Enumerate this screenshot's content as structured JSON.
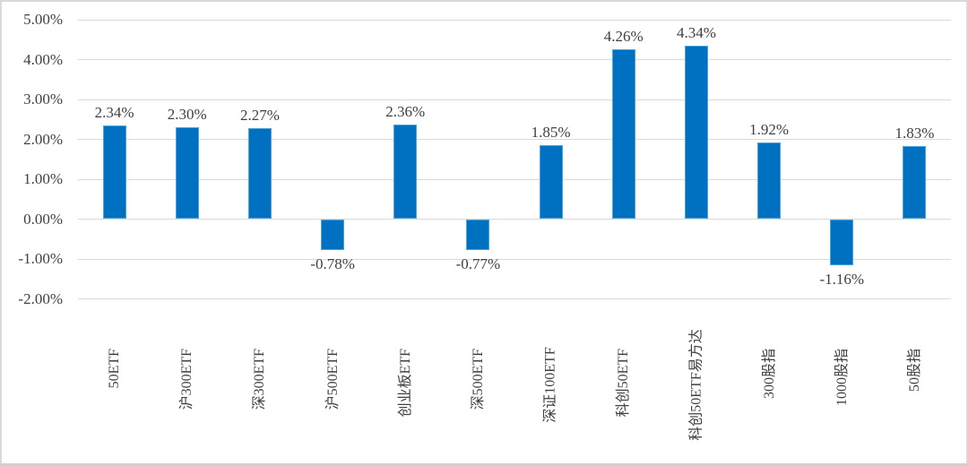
{
  "chart_data": {
    "type": "bar",
    "title": "",
    "xlabel": "",
    "ylabel": "",
    "categories": [
      "50ETF",
      "沪300ETF",
      "深300ETF",
      "沪500ETF",
      "创业板ETF",
      "深500ETF",
      "深证100ETF",
      "科创50ETF",
      "科创50ETF易方达",
      "300股指",
      "1000股指",
      "50股指"
    ],
    "values": [
      2.34,
      2.3,
      2.27,
      -0.78,
      2.36,
      -0.77,
      1.85,
      4.26,
      4.34,
      1.92,
      -1.16,
      1.83
    ],
    "data_labels": [
      "2.34%",
      "2.30%",
      "2.27%",
      "-0.78%",
      "2.36%",
      "-0.77%",
      "1.85%",
      "4.26%",
      "4.34%",
      "1.92%",
      "-1.16%",
      "1.83%"
    ],
    "yticks": [
      {
        "value": 5,
        "label": "5.00%"
      },
      {
        "value": 4,
        "label": "4.00%"
      },
      {
        "value": 3,
        "label": "3.00%"
      },
      {
        "value": 2,
        "label": "2.00%"
      },
      {
        "value": 1,
        "label": "1.00%"
      },
      {
        "value": 0,
        "label": "0.00%"
      },
      {
        "value": -1,
        "label": "-1.00%"
      },
      {
        "value": -2,
        "label": "-2.00%"
      }
    ],
    "ylim": [
      -2,
      5
    ],
    "grid": true,
    "legend_position": "none",
    "colors": {
      "bar_fill": "#0070C0",
      "bar_border": "#4FA3DC",
      "gridline": "#D9D9D9",
      "axis_text": "#404040",
      "background": "#FFFFFF",
      "frame_border": "#D9D9D9"
    }
  }
}
